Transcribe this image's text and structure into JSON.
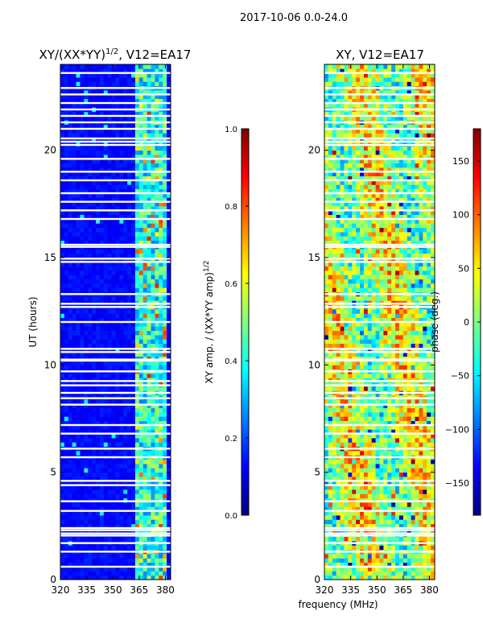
{
  "figure": {
    "suptitle": "2017-10-06 0.0-24.0",
    "common_xlabel": "frequency (MHz)"
  },
  "chart_data": [
    {
      "type": "heatmap",
      "id": "amp",
      "title": "XY/(XX*YY)",
      "title_superscript": "1/2",
      "title_suffix": ", V12=EA17",
      "xlabel": "",
      "ylabel": "UT (hours)",
      "xlim": [
        320,
        383
      ],
      "ylim": [
        0,
        24
      ],
      "xticks": [
        320,
        335,
        350,
        365,
        380
      ],
      "yticks": [
        0,
        5,
        10,
        15,
        20
      ],
      "colormap": "jet",
      "colorbar": {
        "label": "XY amp. / (XX*YY amp)",
        "label_superscript": "1/2",
        "range": [
          0.0,
          1.0
        ],
        "ticks": [
          "0.0",
          "0.2",
          "0.4",
          "0.6",
          "0.8",
          "1.0"
        ]
      },
      "bright_band_mhz": [
        363,
        381
      ],
      "flagged_ut_hours": [
        0.6,
        1.3,
        1.7,
        2.05,
        2.15,
        2.3,
        2.4,
        3.2,
        3.65,
        4.4,
        4.6,
        5.7,
        6.1,
        6.8,
        7.2,
        8.15,
        8.45,
        8.7,
        9.05,
        9.25,
        9.7,
        10.2,
        10.25,
        10.6,
        10.75,
        12.0,
        12.7,
        12.85,
        13.3,
        14.8,
        14.95,
        15.5,
        15.6,
        16.8,
        17.2,
        17.6,
        18.0,
        18.6,
        19.0,
        19.6,
        20.25,
        20.4,
        20.55,
        21.0,
        21.3,
        21.6,
        21.9,
        22.2,
        22.6,
        22.9,
        23.6
      ]
    },
    {
      "type": "heatmap",
      "id": "phase",
      "title": "XY, V12=EA17",
      "xlabel": "",
      "ylabel": "",
      "xlim": [
        320,
        383
      ],
      "ylim": [
        0,
        24
      ],
      "xticks": [
        320,
        335,
        350,
        365,
        380
      ],
      "yticks": [
        0,
        5,
        10,
        15,
        20
      ],
      "colormap": "jet",
      "colorbar": {
        "label": "phase (deg.)",
        "range": [
          -180,
          180
        ],
        "ticks": [
          "−150",
          "−100",
          "−50",
          "0",
          "50",
          "100",
          "150"
        ]
      },
      "flagged_ut_hours": [
        0.6,
        1.3,
        1.7,
        2.05,
        2.15,
        2.3,
        2.4,
        3.2,
        3.65,
        4.4,
        4.6,
        5.7,
        6.1,
        6.8,
        7.2,
        8.15,
        8.45,
        8.7,
        9.05,
        9.25,
        9.7,
        10.2,
        10.25,
        10.6,
        10.75,
        12.0,
        12.7,
        12.85,
        13.3,
        14.8,
        14.95,
        15.5,
        15.6,
        16.8,
        17.2,
        17.6,
        18.0,
        18.6,
        19.0,
        19.6,
        20.25,
        20.4,
        20.55,
        21.0,
        21.3,
        21.6,
        21.9,
        22.2,
        22.6,
        22.9,
        23.6
      ]
    }
  ]
}
